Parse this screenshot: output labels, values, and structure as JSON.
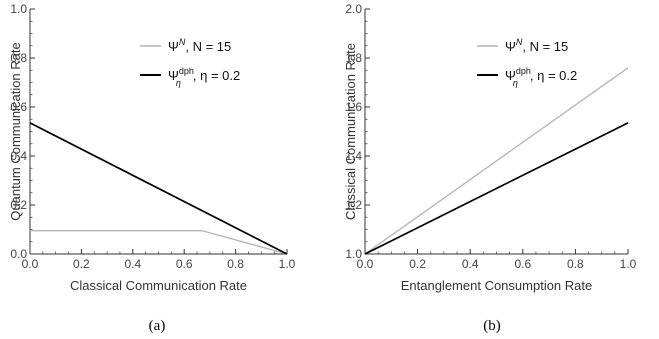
{
  "chart_data": [
    {
      "type": "line",
      "caption": "(a)",
      "xlabel": "Classical Communication Rate",
      "ylabel": "Quantum Communication Rate",
      "xlim": [
        0,
        1
      ],
      "ylim": [
        0,
        1
      ],
      "xticks": [
        "0.0",
        "0.2",
        "0.4",
        "0.6",
        "0.8",
        "1.0"
      ],
      "yticks": [
        "0.0",
        "0.2",
        "0.4",
        "0.6",
        "0.8",
        "1.0"
      ],
      "legend_position": "top-right",
      "series": [
        {
          "name": "ΨN, N = 15",
          "legend": {
            "symbol": "Ψ",
            "sup": "N",
            "sub": "",
            "label": ",   N = 15"
          },
          "color": "#b3b3b3",
          "width": 1.3,
          "x": [
            0.0,
            0.67,
            1.0
          ],
          "y": [
            0.095,
            0.095,
            0.0
          ]
        },
        {
          "name": "Ψηdph, η = 0.2",
          "legend": {
            "symbol": "Ψ",
            "sup": "dph",
            "sub": "η",
            "label": ",  η = 0.2"
          },
          "color": "#000000",
          "width": 1.7,
          "x": [
            0.0,
            1.0
          ],
          "y": [
            0.535,
            0.0
          ]
        }
      ]
    },
    {
      "type": "line",
      "caption": "(b)",
      "xlabel": "Entanglement Consumption Rate",
      "ylabel": "Classical Communication Rate",
      "xlim": [
        0,
        1
      ],
      "ylim": [
        1,
        2
      ],
      "xticks": [
        "0.0",
        "0.2",
        "0.4",
        "0.6",
        "0.8",
        "1.0"
      ],
      "yticks": [
        "1.0",
        "1.2",
        "1.4",
        "1.6",
        "1.8",
        "2.0"
      ],
      "legend_position": "top-right",
      "series": [
        {
          "name": "ΨN, N = 15",
          "legend": {
            "symbol": "Ψ",
            "sup": "N",
            "sub": "",
            "label": ",   N = 15"
          },
          "color": "#b3b3b3",
          "width": 1.3,
          "x": [
            0.0,
            1.0
          ],
          "y": [
            1.0,
            1.76
          ]
        },
        {
          "name": "Ψηdph, η = 0.2",
          "legend": {
            "symbol": "Ψ",
            "sup": "dph",
            "sub": "η",
            "label": ",  η = 0.2"
          },
          "color": "#000000",
          "width": 1.7,
          "x": [
            0.0,
            1.0
          ],
          "y": [
            1.0,
            1.535
          ]
        }
      ]
    }
  ]
}
